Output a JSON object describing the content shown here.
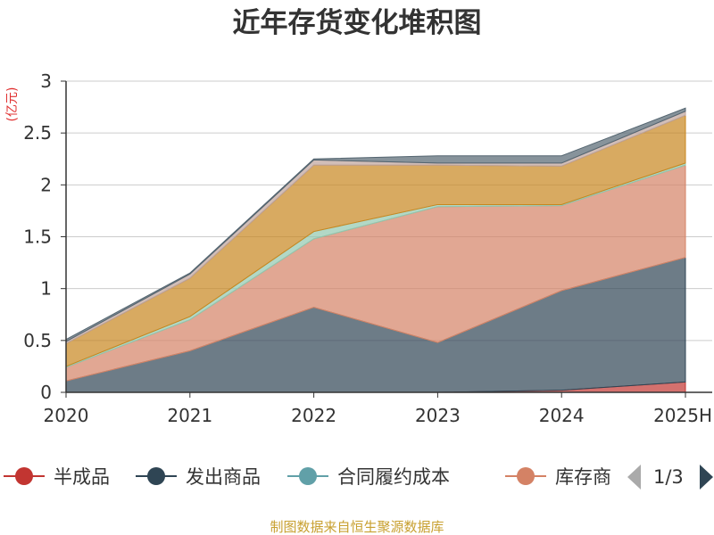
{
  "chart_data": {
    "type": "area",
    "stacked": true,
    "title": "近年存货变化堆积图",
    "ylabel": "(亿元)",
    "ylim": [
      0,
      3
    ],
    "yticks": [
      "0",
      "0.5",
      "1",
      "1.5",
      "2",
      "2.5",
      "3"
    ],
    "categories": [
      "2020",
      "2021",
      "2022",
      "2023",
      "2024",
      "2025H"
    ],
    "grid": true,
    "legend_position": "bottom",
    "series": [
      {
        "name": "半成品",
        "color": "#c23531",
        "values": [
          0,
          0,
          0,
          0,
          0.02,
          0.1
        ]
      },
      {
        "name": "发出商品",
        "color": "#2f4554",
        "values": [
          0.11,
          0.4,
          0.82,
          0.48,
          0.96,
          1.2
        ]
      },
      {
        "name": "合同履约成本",
        "color": "#61a0a8",
        "values": [
          0,
          0,
          0,
          0,
          0,
          0
        ]
      },
      {
        "name": "库存商品",
        "color": "#d48265",
        "values": [
          0.13,
          0.3,
          0.66,
          1.31,
          0.82,
          0.89
        ]
      },
      {
        "name": "",
        "color": "#91c7ae",
        "values": [
          0.01,
          0.03,
          0.07,
          0.02,
          0.01,
          0.02
        ]
      },
      {
        "name": "",
        "color": "#c8861e",
        "values": [
          0.22,
          0.37,
          0.64,
          0.38,
          0.37,
          0.46
        ]
      },
      {
        "name": "",
        "color": "#bda29a",
        "values": [
          0.02,
          0.04,
          0.05,
          0.02,
          0.03,
          0.04
        ]
      },
      {
        "name": "",
        "color": "#546570",
        "values": [
          0.02,
          0.01,
          0.01,
          0.07,
          0.07,
          0.03
        ]
      }
    ]
  },
  "legend": {
    "visible_names": [
      "半成品",
      "发出商品",
      "合同履约成本",
      "库存商"
    ],
    "pager": "1/3"
  },
  "source": "制图数据来自恒生聚源数据库"
}
